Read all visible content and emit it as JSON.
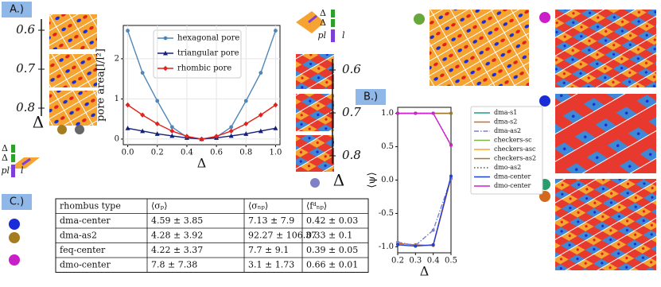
{
  "panel_labels": [
    "A.)",
    "B.)",
    "C.)"
  ],
  "side_scale": {
    "ticks": [
      0.6,
      0.7,
      0.8
    ],
    "label": "Δ"
  },
  "rhombus_key": {
    "labels": [
      "Δ",
      "Δ",
      "pl",
      "l"
    ]
  },
  "chart_data": [
    {
      "type": "line",
      "x_label": "Δ",
      "y_label": "pore area[l/l²]",
      "x": [
        0,
        0.1,
        0.2,
        0.3,
        0.4,
        0.5,
        0.6,
        0.7,
        0.8,
        0.9,
        1.0
      ],
      "xlim": [
        -0.03,
        1.03
      ],
      "ylim": [
        -0.14,
        2.83
      ],
      "xticks": [
        {
          "value": 0,
          "label": "0.0"
        },
        0.2,
        0.4,
        0.6,
        0.8,
        {
          "value": 1.0,
          "label": "1.0"
        }
      ],
      "yticks": [
        0,
        1,
        2
      ],
      "legend": "upper-left",
      "series": [
        {
          "name": "hexagonal pore",
          "color": "#4e86b8",
          "marker": "circle",
          "values": [
            2.7,
            1.65,
            0.95,
            0.3,
            0.05,
            0,
            0.05,
            0.3,
            0.95,
            1.65,
            2.7
          ]
        },
        {
          "name": "triangular pore",
          "color": "#12207a",
          "marker": "triangle",
          "values": [
            0.27,
            0.2,
            0.13,
            0.08,
            0.03,
            0,
            0.03,
            0.08,
            0.13,
            0.2,
            0.27
          ]
        },
        {
          "name": "rhombic pore",
          "color": "#e0231e",
          "marker": "diamond",
          "values": [
            0.85,
            0.6,
            0.38,
            0.2,
            0.07,
            0,
            0.07,
            0.2,
            0.38,
            0.6,
            0.85
          ]
        }
      ]
    },
    {
      "type": "line",
      "x_label": "Δ",
      "y_label": "⟨ψ⟩",
      "x": [
        0.2,
        0.3,
        0.4,
        0.5
      ],
      "xlim": [
        0.2,
        0.5
      ],
      "ylim": [
        -1.09,
        1.09
      ],
      "xticks": [
        0.2,
        0.3,
        0.4,
        0.5
      ],
      "yticks": [
        {
          "value": -1,
          "label": "-1.0"
        },
        {
          "value": -0.5,
          "label": "-0.5"
        },
        {
          "value": 0,
          "label": "0.0"
        },
        0.5,
        {
          "value": 1,
          "label": "1.0"
        }
      ],
      "legend": "outside-right",
      "series": [
        {
          "name": "dma-s1",
          "color": "#1f9e89",
          "dash": "solid",
          "values": [
            1,
            1,
            1,
            1
          ]
        },
        {
          "name": "dma-s2",
          "color": "#d2691e",
          "dash": "solid",
          "values": [
            -0.95,
            -0.97,
            -0.98,
            0.03
          ]
        },
        {
          "name": "dma-as2",
          "color": "#7b7fd0",
          "dash": "dashdot",
          "values": [
            -0.93,
            -0.98,
            -0.75,
            0.02
          ]
        },
        {
          "name": "checkers-sc",
          "color": "#7cb342",
          "dash": "solid",
          "values": [
            1,
            1,
            1,
            1
          ]
        },
        {
          "name": "checkers-asc",
          "color": "#f5a623",
          "dash": "solid",
          "values": [
            1,
            1,
            1,
            1
          ]
        },
        {
          "name": "checkers-as2",
          "color": "#a0782a",
          "dash": "solid",
          "values": [
            1,
            1,
            1,
            1
          ]
        },
        {
          "name": "dmo-as2",
          "color": "#555555",
          "dash": "dotted",
          "values": [
            1,
            1,
            1,
            0.53
          ]
        },
        {
          "name": "dma-center",
          "color": "#1f3fd1",
          "dash": "solid",
          "values": [
            -0.97,
            -0.99,
            -0.97,
            0.06
          ]
        },
        {
          "name": "dmo-center",
          "color": "#d11fd1",
          "dash": "solid",
          "values": [
            1,
            1,
            1,
            0.52
          ]
        }
      ]
    }
  ],
  "table": {
    "header": [
      "rhombus type",
      "⟨σₚ⟩",
      "⟨σₙₚ⟩",
      "⟨fᵈₙₚ⟩"
    ],
    "rows": [
      [
        "dma-center",
        "4.59 ± 3.85",
        "7.13 ± 7.9",
        "0.42 ± 0.03"
      ],
      [
        "dma-as2",
        "4.28 ± 3.92",
        "92.27 ± 106.37",
        "0.33 ± 0.1"
      ],
      [
        "feq-center",
        "4.22 ± 3.37",
        "7.7 ± 9.1",
        "0.39 ± 0.05"
      ],
      [
        "dmo-center",
        "7.8 ± 7.38",
        "3.1 ± 1.73",
        "0.66 ± 0.01"
      ]
    ]
  }
}
